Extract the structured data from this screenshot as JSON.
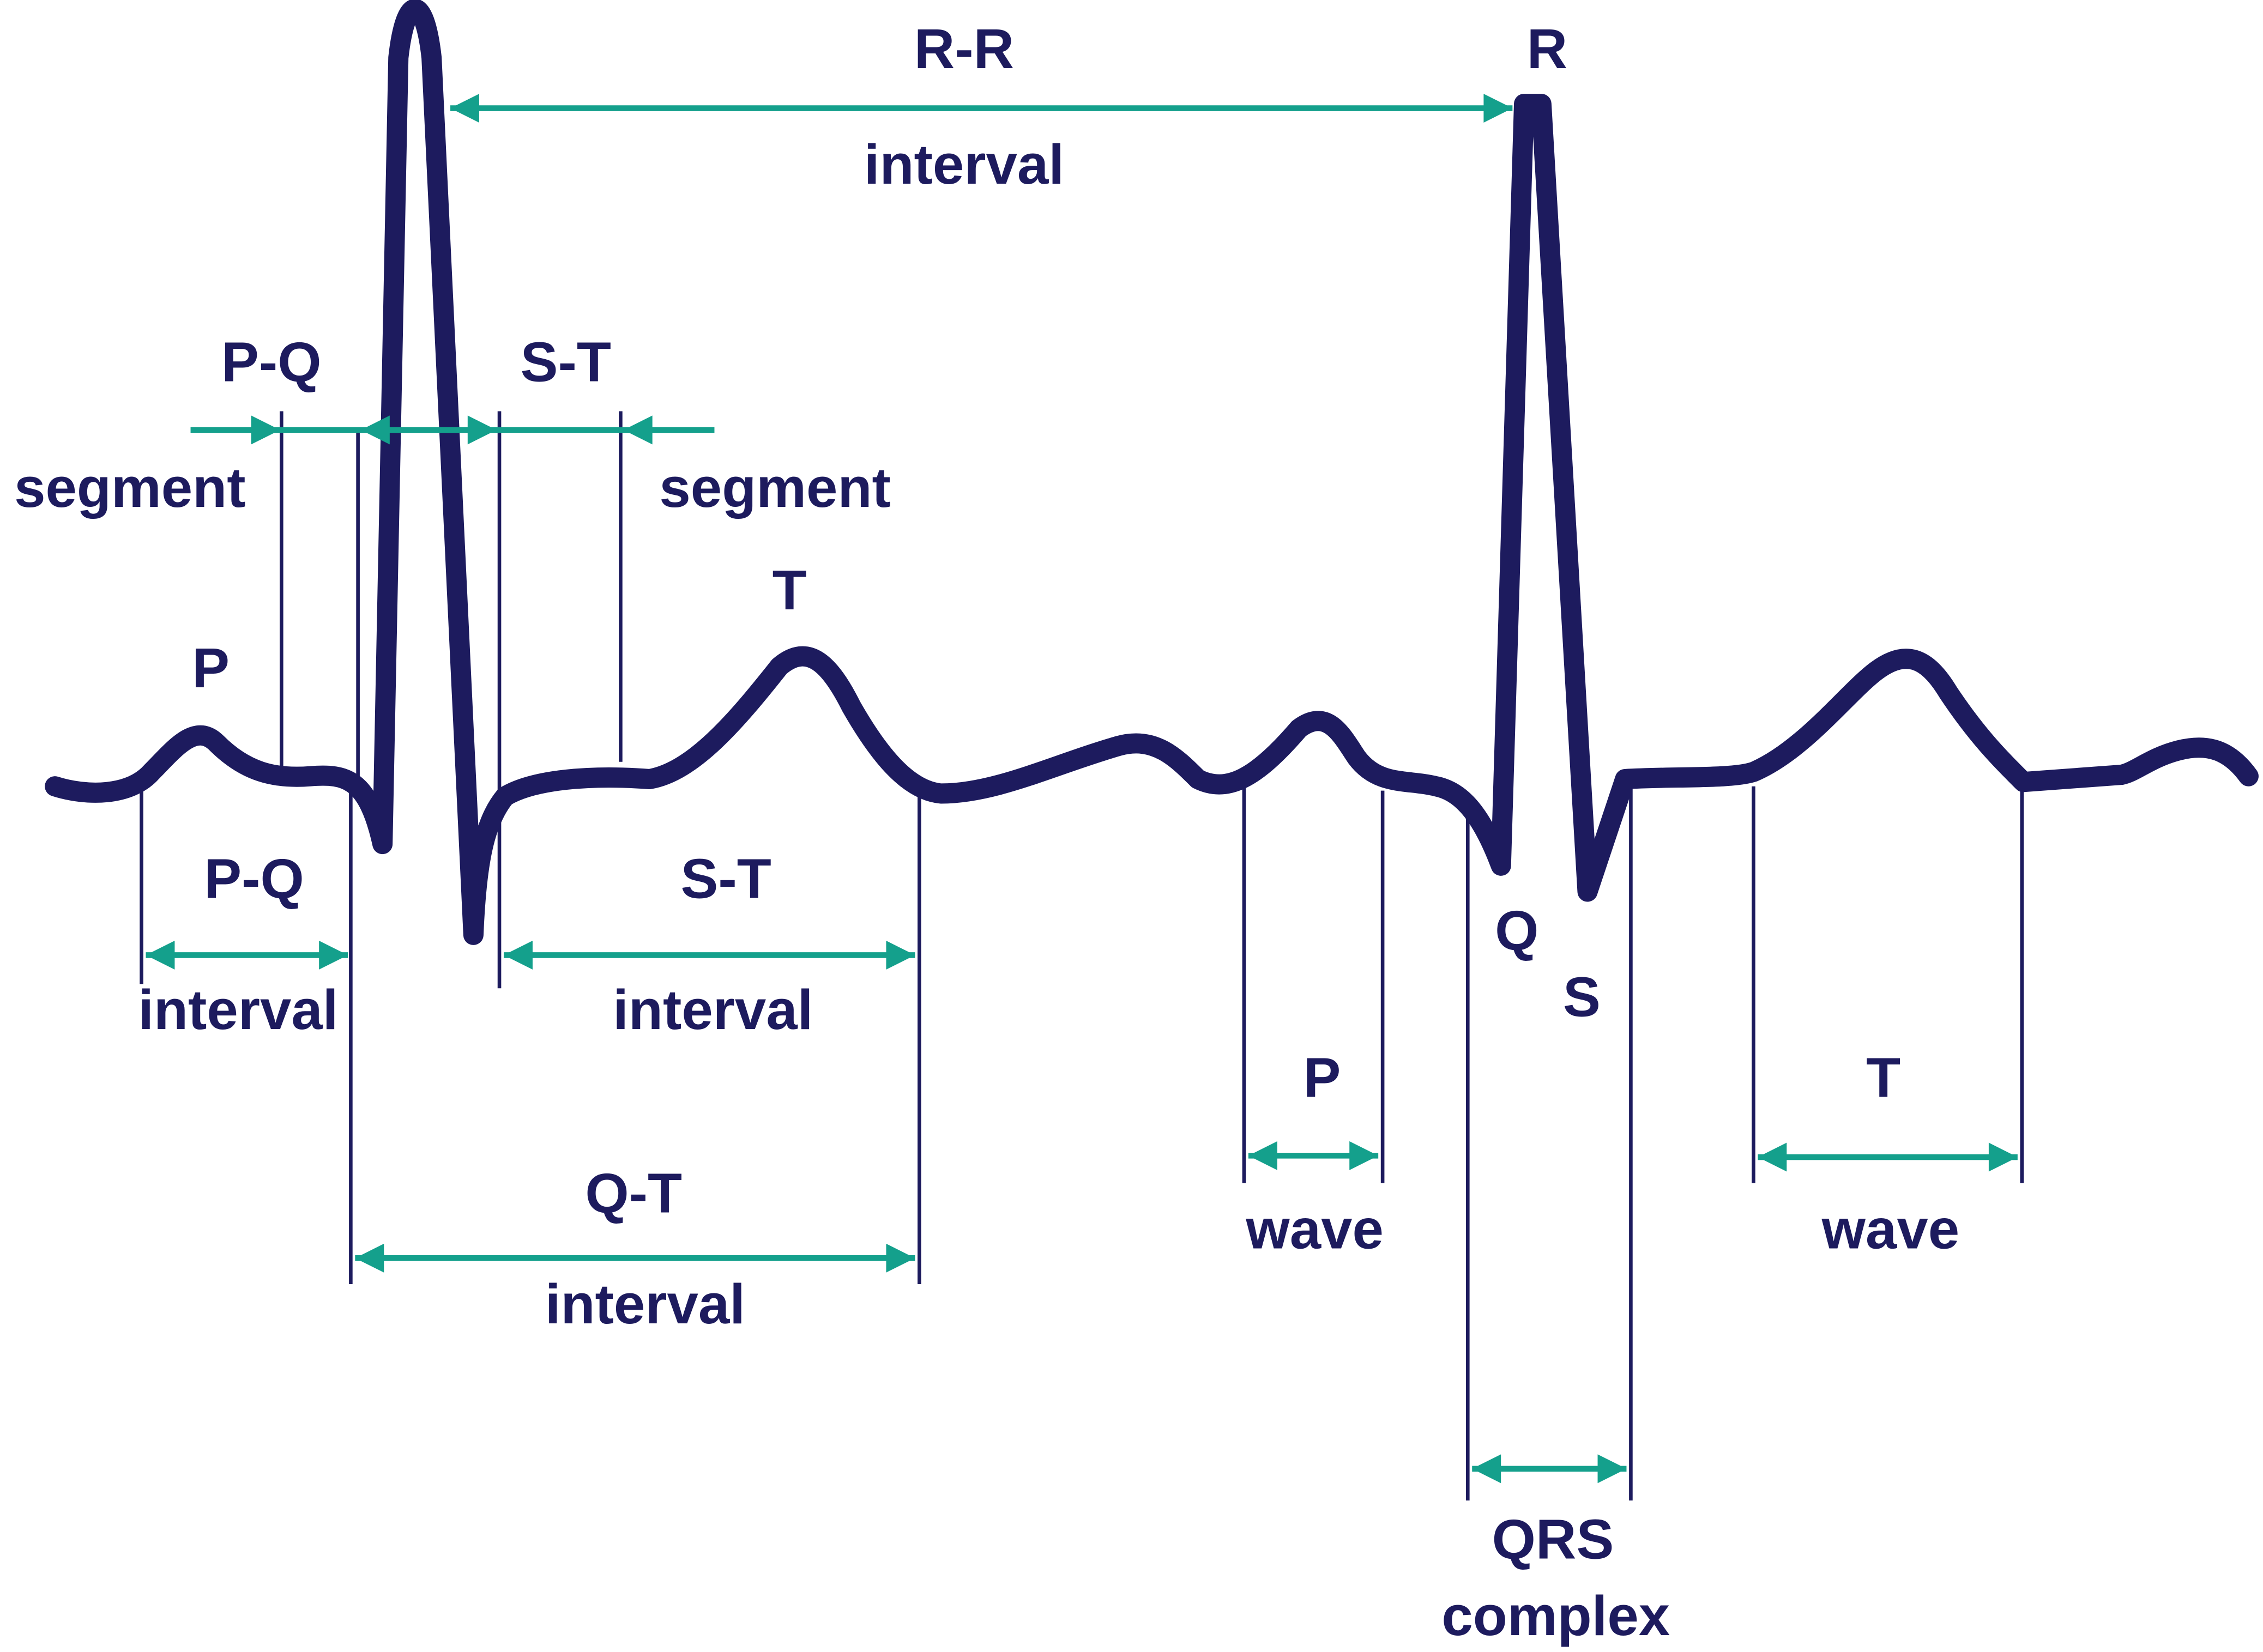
{
  "peaks": {
    "p": "P",
    "t": "T",
    "r": "R",
    "q": "Q",
    "s": "S"
  },
  "measurements": [
    {
      "name": "R-R",
      "kind": "interval"
    },
    {
      "name": "P-Q",
      "kind": "segment"
    },
    {
      "name": "S-T",
      "kind": "segment"
    },
    {
      "name": "P-Q",
      "kind": "interval"
    },
    {
      "name": "S-T",
      "kind": "interval"
    },
    {
      "name": "Q-T",
      "kind": "interval"
    },
    {
      "name": "P",
      "kind": "wave"
    },
    {
      "name": "T",
      "kind": "wave"
    },
    {
      "name": "QRS",
      "kind": "complex"
    }
  ]
}
